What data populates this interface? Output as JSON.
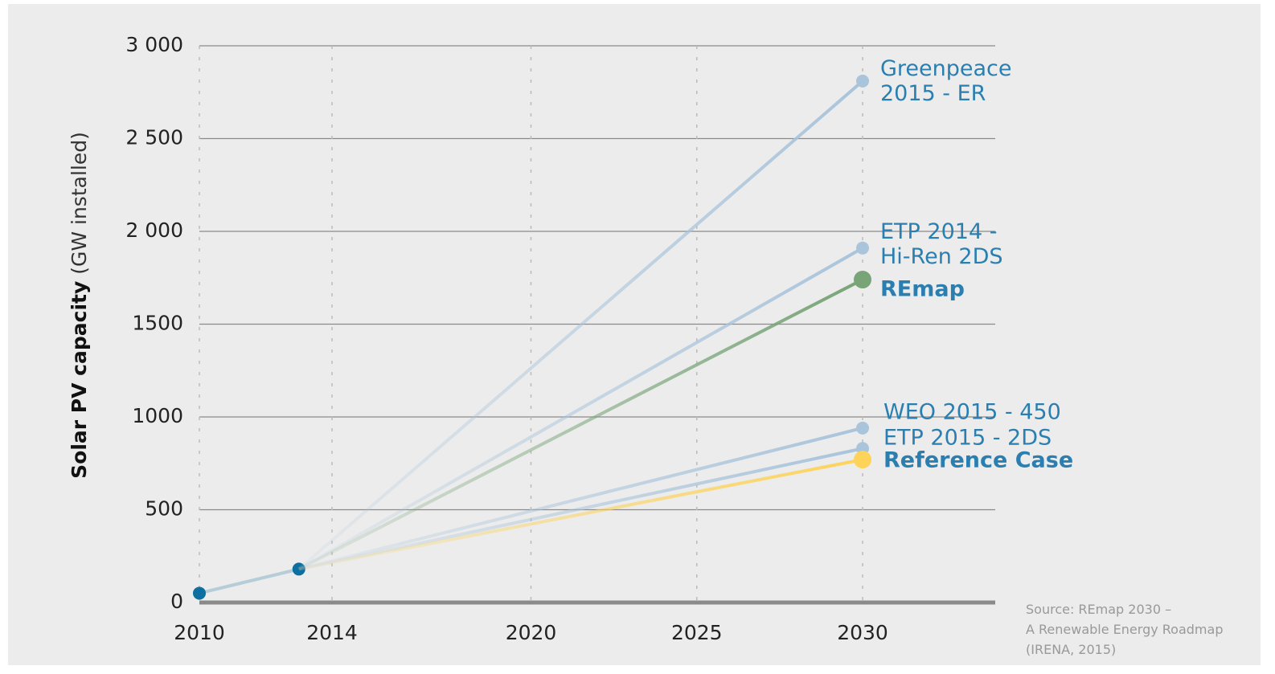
{
  "chart_data": {
    "type": "line",
    "y_label": "Solar PV capacity",
    "y_label_unit": "(GW installed)",
    "source": [
      "Source: REmap 2030 –",
      "A Renewable Energy Roadmap",
      "(IRENA, 2015)"
    ],
    "xlim": [
      2010,
      2034
    ],
    "xticks": [
      2010,
      2014,
      2020,
      2025,
      2030
    ],
    "ylim": [
      0,
      3000
    ],
    "yticks": [
      0,
      500,
      1000,
      1500,
      {
        "value": 2000,
        "label": "2 000"
      },
      {
        "value": 2500,
        "label": "2 500"
      },
      {
        "value": 3000,
        "label": "3 000"
      }
    ],
    "grid": true,
    "series": [
      {
        "color": "#0b6fa0",
        "x": [
          2010,
          2013
        ],
        "values": [
          50,
          180
        ]
      },
      {
        "name": "Greenpeace\n2015 - ER",
        "color": "#a9c4db",
        "x": [
          2013,
          2030
        ],
        "values": [
          180,
          2810
        ]
      },
      {
        "name": "ETP 2014 -\nHi-Ren 2DS",
        "color": "#a9c4db",
        "x": [
          2013,
          2030
        ],
        "values": [
          180,
          1910
        ]
      },
      {
        "name": "REmap",
        "color": "#78a478",
        "bold": true,
        "x": [
          2013,
          2030
        ],
        "values": [
          180,
          1740
        ]
      },
      {
        "name": "WEO 2015 - 450",
        "color": "#a9c4db",
        "x": [
          2013,
          2030
        ],
        "values": [
          180,
          940
        ]
      },
      {
        "name": "ETP 2015 - 2DS",
        "color": "#a9c4db",
        "x": [
          2013,
          2030
        ],
        "values": [
          180,
          830
        ]
      },
      {
        "name": "Reference Case",
        "color": "#fdd35a",
        "bold": true,
        "x": [
          2013,
          2030
        ],
        "values": [
          180,
          770
        ]
      }
    ]
  }
}
